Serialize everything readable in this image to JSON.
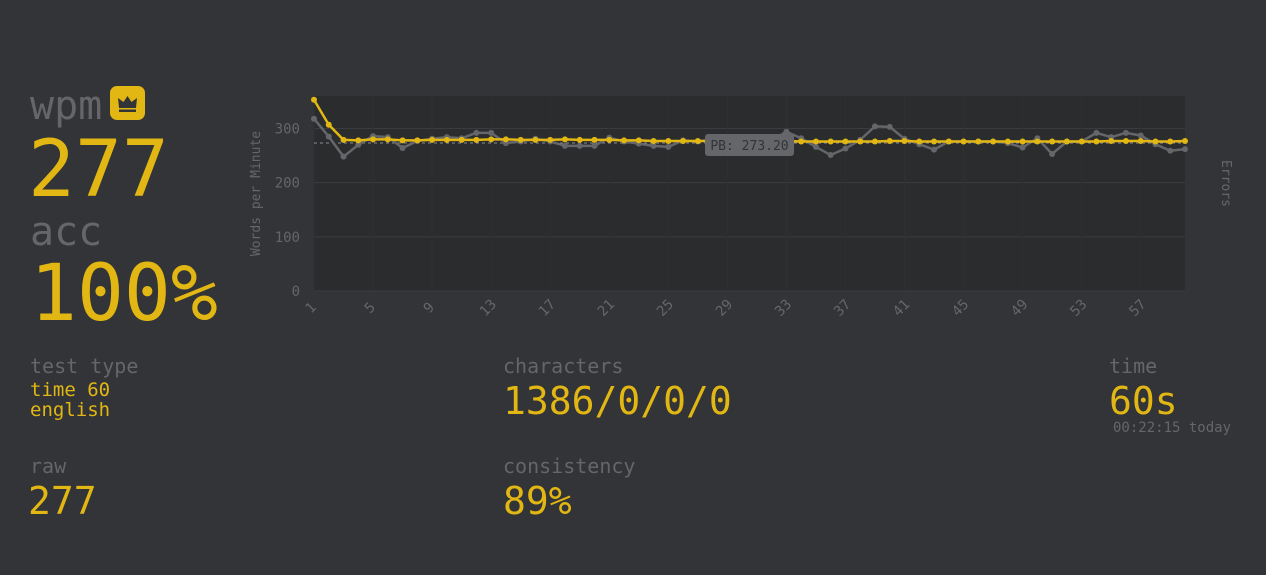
{
  "stats": {
    "wpm_label": "wpm",
    "wpm_value": "277",
    "acc_label": "acc",
    "acc_value": "100%",
    "test_type_label": "test type",
    "test_type_line1": "time 60",
    "test_type_line2": "english",
    "raw_label": "raw",
    "raw_value": "277",
    "characters_label": "characters",
    "characters_value": "1386/0/0/0",
    "consistency_label": "consistency",
    "consistency_value": "89%",
    "time_label": "time",
    "time_value": "60s",
    "time_date": "00:22:15 today"
  },
  "icons": {
    "personal_best": "crown-icon"
  },
  "colors": {
    "background": "#323437",
    "accent": "#e2b714",
    "sub": "#646669",
    "raw_line": "#646669"
  },
  "chart_data": {
    "type": "line",
    "ylabel": "Words per Minute",
    "y2label": "Errors",
    "ylim": [
      0,
      360
    ],
    "yticks": [
      0,
      100,
      200,
      300
    ],
    "x": [
      1,
      2,
      3,
      4,
      5,
      6,
      7,
      8,
      9,
      10,
      11,
      12,
      13,
      14,
      15,
      16,
      17,
      18,
      19,
      20,
      21,
      22,
      23,
      24,
      25,
      26,
      27,
      28,
      29,
      30,
      31,
      32,
      33,
      34,
      35,
      36,
      37,
      38,
      39,
      40,
      41,
      42,
      43,
      44,
      45,
      46,
      47,
      48,
      49,
      50,
      51,
      52,
      53,
      54,
      55,
      56,
      57,
      58,
      59,
      60
    ],
    "xtick_labels": [
      "1",
      "5",
      "9",
      "13",
      "17",
      "21",
      "25",
      "29",
      "33",
      "37",
      "41",
      "45",
      "49",
      "53",
      "57"
    ],
    "pb": {
      "value": 273.2,
      "label": "PB: 273.20"
    },
    "series": [
      {
        "key": "wpm",
        "values": [
          353,
          307,
          279,
          278,
          280,
          280,
          278,
          278,
          279,
          279,
          279,
          279,
          280,
          280,
          279,
          279,
          279,
          280,
          279,
          279,
          279,
          278,
          278,
          277,
          277,
          277,
          277,
          277,
          277,
          277,
          277,
          277,
          277,
          276,
          276,
          276,
          276,
          276,
          276,
          277,
          277,
          276,
          276,
          276,
          276,
          276,
          276,
          276,
          276,
          276,
          276,
          276,
          276,
          276,
          277,
          277,
          277,
          276,
          276,
          277
        ]
      },
      {
        "key": "raw",
        "values": [
          318,
          285,
          248,
          270,
          286,
          284,
          264,
          277,
          281,
          284,
          282,
          292,
          292,
          273,
          276,
          281,
          276,
          268,
          268,
          268,
          283,
          276,
          272,
          268,
          266,
          278,
          276,
          280,
          276,
          276,
          282,
          278,
          294,
          282,
          266,
          251,
          263,
          279,
          304,
          303,
          281,
          271,
          261,
          276,
          276,
          276,
          276,
          273,
          265,
          282,
          253,
          276,
          276,
          292,
          284,
          292,
          287,
          271,
          259,
          262
        ]
      }
    ]
  }
}
